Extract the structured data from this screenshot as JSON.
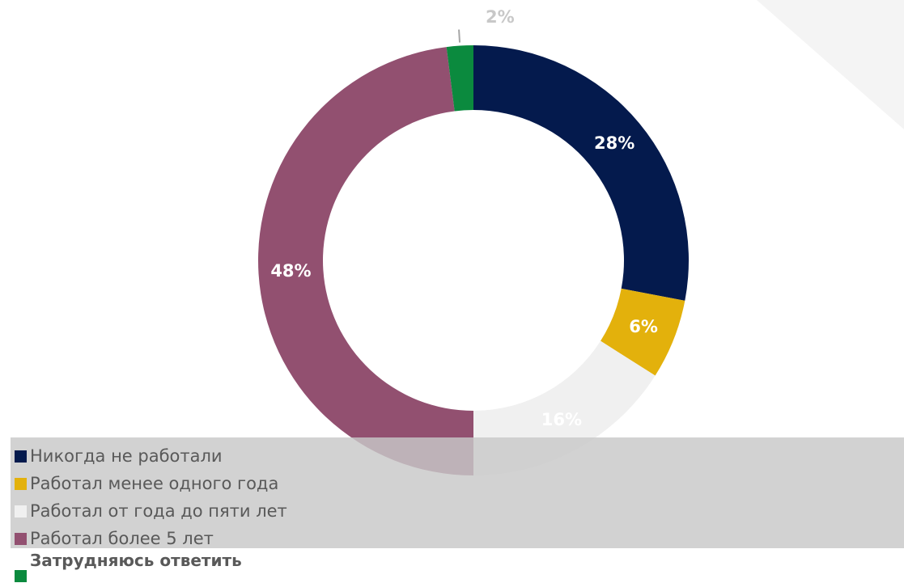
{
  "chart_data": {
    "type": "pie",
    "donut": true,
    "categories": [
      "Никогда не работали",
      "Работал менее одного года",
      "Работал от года до пяти лет",
      "Работал более 5 лет",
      "Затрудняюсь ответить"
    ],
    "values": [
      28,
      6,
      16,
      48,
      2
    ],
    "labels": [
      "28%",
      "6%",
      "16%",
      "48%",
      "2%"
    ],
    "colors": [
      "#041a4d",
      "#e3b10c",
      "#f0f0f0",
      "#925070",
      "#0b8a3e"
    ],
    "label_colors": [
      "#ffffff",
      "#ffffff",
      "#ffffff",
      "#ffffff",
      "#c8c8c8"
    ],
    "legend_position": "bottom-left"
  }
}
